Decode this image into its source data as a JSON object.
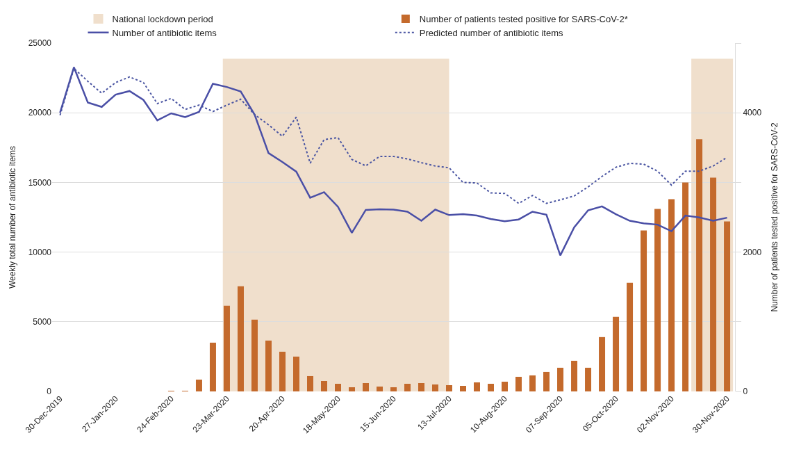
{
  "chart_data": {
    "type": "line",
    "ylabel": "Weekly total number of antibiotic items",
    "y2label": "Number of patients tested positive for SARS-CoV-2",
    "x": [
      "2019-12-30",
      "2020-01-06",
      "2020-01-13",
      "2020-01-20",
      "2020-01-27",
      "2020-02-03",
      "2020-02-10",
      "2020-02-17",
      "2020-02-24",
      "2020-03-02",
      "2020-03-09",
      "2020-03-16",
      "2020-03-23",
      "2020-03-30",
      "2020-04-06",
      "2020-04-13",
      "2020-04-20",
      "2020-04-27",
      "2020-05-04",
      "2020-05-11",
      "2020-05-18",
      "2020-05-25",
      "2020-06-01",
      "2020-06-08",
      "2020-06-15",
      "2020-06-22",
      "2020-06-29",
      "2020-07-06",
      "2020-07-13",
      "2020-07-20",
      "2020-07-27",
      "2020-08-03",
      "2020-08-10",
      "2020-08-17",
      "2020-08-24",
      "2020-08-31",
      "2020-09-07",
      "2020-09-14",
      "2020-09-21",
      "2020-09-28",
      "2020-10-05",
      "2020-10-12",
      "2020-10-19",
      "2020-10-26",
      "2020-11-02",
      "2020-11-09",
      "2020-11-16",
      "2020-11-23",
      "2020-11-30"
    ],
    "series": [
      {
        "name": "Number of patients tested positive for SARS-CoV-2*",
        "type": "bar",
        "axis": "y2",
        "color": "#c46a2c",
        "values": [
          0,
          0,
          0,
          0,
          0,
          0,
          0,
          0,
          10,
          10,
          170,
          700,
          1230,
          1510,
          1030,
          730,
          570,
          500,
          220,
          150,
          110,
          60,
          120,
          70,
          60,
          110,
          120,
          100,
          90,
          80,
          130,
          110,
          140,
          210,
          230,
          280,
          340,
          440,
          340,
          780,
          1070,
          1560,
          2310,
          2620,
          2760,
          3000,
          3620,
          3070,
          2440
        ]
      },
      {
        "name": "Number of antibiotic items",
        "color": "#4a4fa6",
        "line_style": "solid",
        "values": [
          20000,
          23270,
          20740,
          20420,
          21300,
          21560,
          20920,
          19450,
          19960,
          19690,
          20060,
          22080,
          21850,
          21530,
          19870,
          17110,
          16470,
          15770,
          13900,
          14300,
          13250,
          11380,
          13030,
          13070,
          13050,
          12900,
          12250,
          13050,
          12660,
          12720,
          12620,
          12380,
          12210,
          12340,
          12900,
          12680,
          9760,
          11780,
          13000,
          13280,
          12720,
          12250,
          12060,
          11970,
          11500,
          12620,
          12490,
          12250,
          12470
        ]
      },
      {
        "name": "Predicted number of antibiotic items",
        "color": "#4a55a2",
        "line_style": "dotted",
        "values": [
          19820,
          23180,
          22260,
          21400,
          22170,
          22570,
          22170,
          20660,
          21030,
          20240,
          20550,
          20090,
          20550,
          20970,
          19870,
          19140,
          18310,
          19690,
          16380,
          18070,
          18220,
          16650,
          16190,
          16870,
          16870,
          16690,
          16420,
          16180,
          16050,
          15000,
          14960,
          14250,
          14210,
          13500,
          14060,
          13500,
          13750,
          14030,
          14680,
          15430,
          16090,
          16370,
          16310,
          15810,
          14810,
          15810,
          15810,
          16180,
          16800
        ]
      }
    ],
    "bands": [
      {
        "axis": "x",
        "from": "2020-03-21",
        "to": "2020-07-13",
        "label": "National lockdown period",
        "color": "#f0dfcc"
      },
      {
        "axis": "x",
        "from": "2020-11-12",
        "to": "2020-12-03",
        "color": "#f0dfcc"
      }
    ],
    "xlim": [
      "2019-12-26",
      "2020-12-04"
    ],
    "xticks": [
      {
        "value": "2019-12-30",
        "label": "30-Dec-2019"
      },
      {
        "value": "2020-01-27",
        "label": "27-Jan-2020"
      },
      {
        "value": "2020-02-24",
        "label": "24-Feb-2020"
      },
      {
        "value": "2020-03-23",
        "label": "23-Mar-2020"
      },
      {
        "value": "2020-04-20",
        "label": "20-Apr-2020"
      },
      {
        "value": "2020-05-18",
        "label": "18-May-2020"
      },
      {
        "value": "2020-06-15",
        "label": "15-Jun-2020"
      },
      {
        "value": "2020-07-13",
        "label": "13-Jul-2020"
      },
      {
        "value": "2020-08-10",
        "label": "10-Aug-2020"
      },
      {
        "value": "2020-09-07",
        "label": "07-Sep-2020"
      },
      {
        "value": "2020-10-05",
        "label": "05-Oct-2020"
      },
      {
        "value": "2020-11-02",
        "label": "02-Nov-2020"
      },
      {
        "value": "2020-11-30",
        "label": "30-Nov-2020"
      }
    ],
    "ylim": [
      0,
      25000
    ],
    "yticks": [
      0,
      5000,
      10000,
      15000,
      20000,
      25000
    ],
    "y2lim": [
      0,
      5000
    ],
    "y2ticks": [
      0,
      {
        "value": 1000,
        "label": null
      },
      2000,
      {
        "value": 3000,
        "label": null
      },
      4000,
      {
        "value": 5000,
        "label": null
      }
    ],
    "grid": "y",
    "legend": "top",
    "marker": "none"
  }
}
